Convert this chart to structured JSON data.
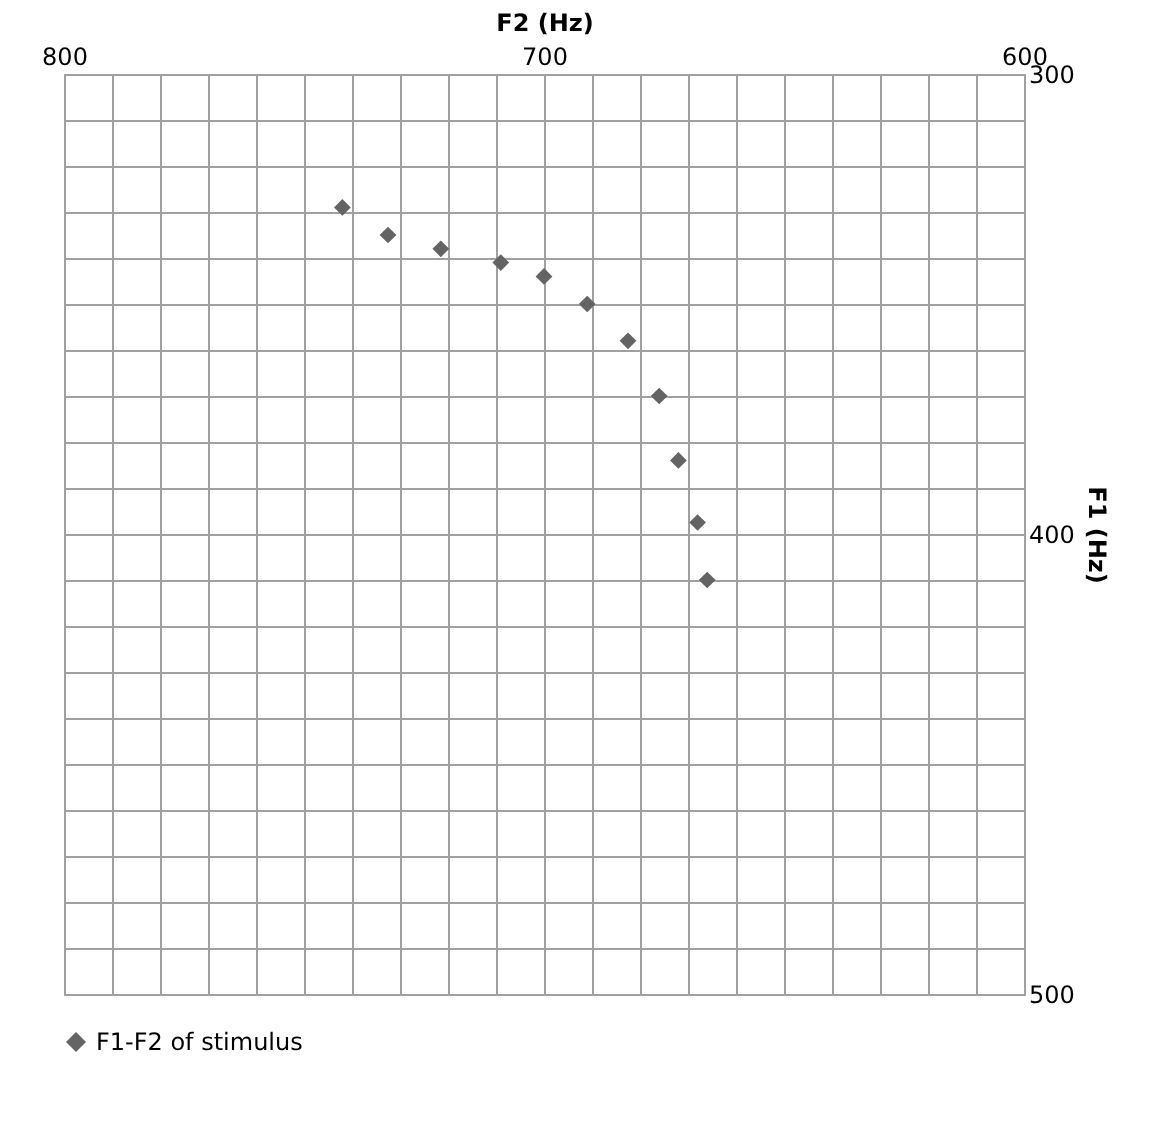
{
  "chart_data": {
    "type": "scatter",
    "xlabel": "F2 (Hz)",
    "ylabel": "F1 (Hz)",
    "x": [
      742,
      732.5,
      721.5,
      709,
      700,
      691,
      682.5,
      676,
      672,
      668,
      666
    ],
    "series": [
      {
        "name": "F1-F2 of stimulus",
        "color": "#646464",
        "values": [
          329,
          335,
          338,
          341,
          344,
          350,
          358,
          370,
          384,
          397.5,
          410
        ]
      }
    ],
    "xlim": [
      800,
      600
    ],
    "ylim": [
      500,
      300
    ],
    "xticks": [
      800,
      {
        "value": 790,
        "label": null
      },
      {
        "value": 780,
        "label": null
      },
      {
        "value": 770,
        "label": null
      },
      {
        "value": 760,
        "label": null
      },
      {
        "value": 750,
        "label": null
      },
      {
        "value": 740,
        "label": null
      },
      {
        "value": 730,
        "label": null
      },
      {
        "value": 720,
        "label": null
      },
      {
        "value": 710,
        "label": null
      },
      700,
      {
        "value": 690,
        "label": null
      },
      {
        "value": 680,
        "label": null
      },
      {
        "value": 670,
        "label": null
      },
      {
        "value": 660,
        "label": null
      },
      {
        "value": 650,
        "label": null
      },
      {
        "value": 640,
        "label": null
      },
      {
        "value": 630,
        "label": null
      },
      {
        "value": 620,
        "label": null
      },
      {
        "value": 610,
        "label": null
      },
      600
    ],
    "yticks": [
      300,
      {
        "value": 310,
        "label": null
      },
      {
        "value": 320,
        "label": null
      },
      {
        "value": 330,
        "label": null
      },
      {
        "value": 340,
        "label": null
      },
      {
        "value": 350,
        "label": null
      },
      {
        "value": 360,
        "label": null
      },
      {
        "value": 370,
        "label": null
      },
      {
        "value": 380,
        "label": null
      },
      {
        "value": 390,
        "label": null
      },
      400,
      {
        "value": 410,
        "label": null
      },
      {
        "value": 420,
        "label": null
      },
      {
        "value": 430,
        "label": null
      },
      {
        "value": 440,
        "label": null
      },
      {
        "value": 450,
        "label": null
      },
      {
        "value": 460,
        "label": null
      },
      {
        "value": 470,
        "label": null
      },
      {
        "value": 480,
        "label": null
      },
      {
        "value": 490,
        "label": null
      },
      500
    ],
    "grid": true,
    "legend": "bottom",
    "marker": "diamond"
  }
}
